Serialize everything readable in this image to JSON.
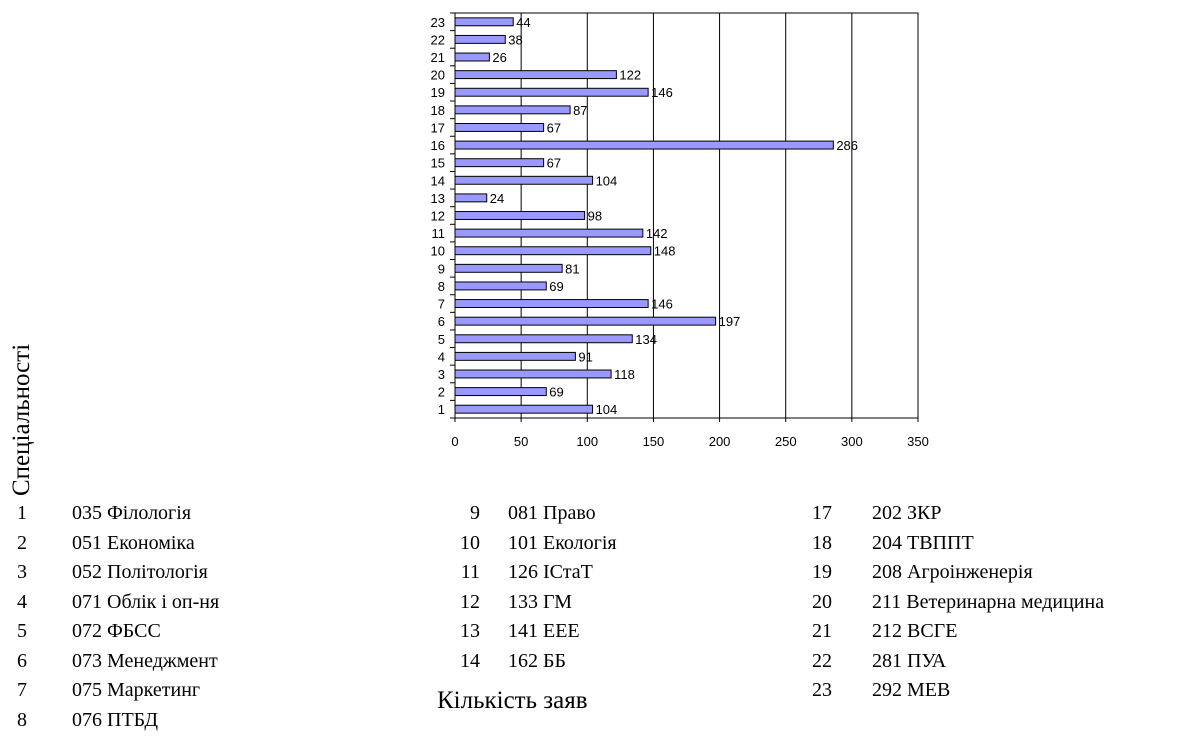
{
  "chart_data": {
    "type": "bar",
    "orientation": "horizontal",
    "categories": [
      "1",
      "2",
      "3",
      "4",
      "5",
      "6",
      "7",
      "8",
      "9",
      "10",
      "11",
      "12",
      "13",
      "14",
      "15",
      "16",
      "17",
      "18",
      "19",
      "20",
      "21",
      "22",
      "23"
    ],
    "values": [
      104,
      69,
      118,
      91,
      134,
      197,
      146,
      69,
      81,
      148,
      142,
      98,
      24,
      104,
      67,
      286,
      67,
      87,
      146,
      122,
      26,
      38,
      44
    ],
    "xlim": [
      0,
      350
    ],
    "x_ticks": [
      "0",
      "50",
      "100",
      "150",
      "200",
      "250",
      "300",
      "350"
    ],
    "xlabel": "Кількість заяв",
    "ylabel": "Спеціальності",
    "grid": "vertical",
    "bar_color": "#9999ff"
  },
  "legend": {
    "col1": [
      {
        "num": "1",
        "text": "035 Філологія"
      },
      {
        "num": "2",
        "text": "051 Економіка"
      },
      {
        "num": "3",
        "text": "052 Політологія"
      },
      {
        "num": "4",
        "text": "071 Облік і оп-ня"
      },
      {
        "num": "5",
        "text": "072 ФБСС"
      },
      {
        "num": "6",
        "text": "073 Менеджмент"
      },
      {
        "num": "7",
        "text": "075 Маркетинг"
      },
      {
        "num": "8",
        "text": "076 ПТБД"
      }
    ],
    "col2": [
      {
        "num": "9",
        "text": "081 Право"
      },
      {
        "num": "10",
        "text": "101 Екологія"
      },
      {
        "num": "11",
        "text": "126 ІСтаТ"
      },
      {
        "num": "12",
        "text": "133 ГМ"
      },
      {
        "num": "13",
        "text": "141 ЕЕЕ"
      },
      {
        "num": "14",
        "text": "162 ББ"
      }
    ],
    "col3": [
      {
        "num": "17",
        "text": "202 ЗКР"
      },
      {
        "num": "18",
        "text": "204 ТВППТ"
      },
      {
        "num": "19",
        "text": "208 Агроінженерія"
      },
      {
        "num": "20",
        "text": "211 Ветеринарна медицина"
      },
      {
        "num": "21",
        "text": "212 ВСГЕ"
      },
      {
        "num": "22",
        "text": "281 ПУА"
      },
      {
        "num": "23",
        "text": "292 МЕВ"
      }
    ]
  }
}
